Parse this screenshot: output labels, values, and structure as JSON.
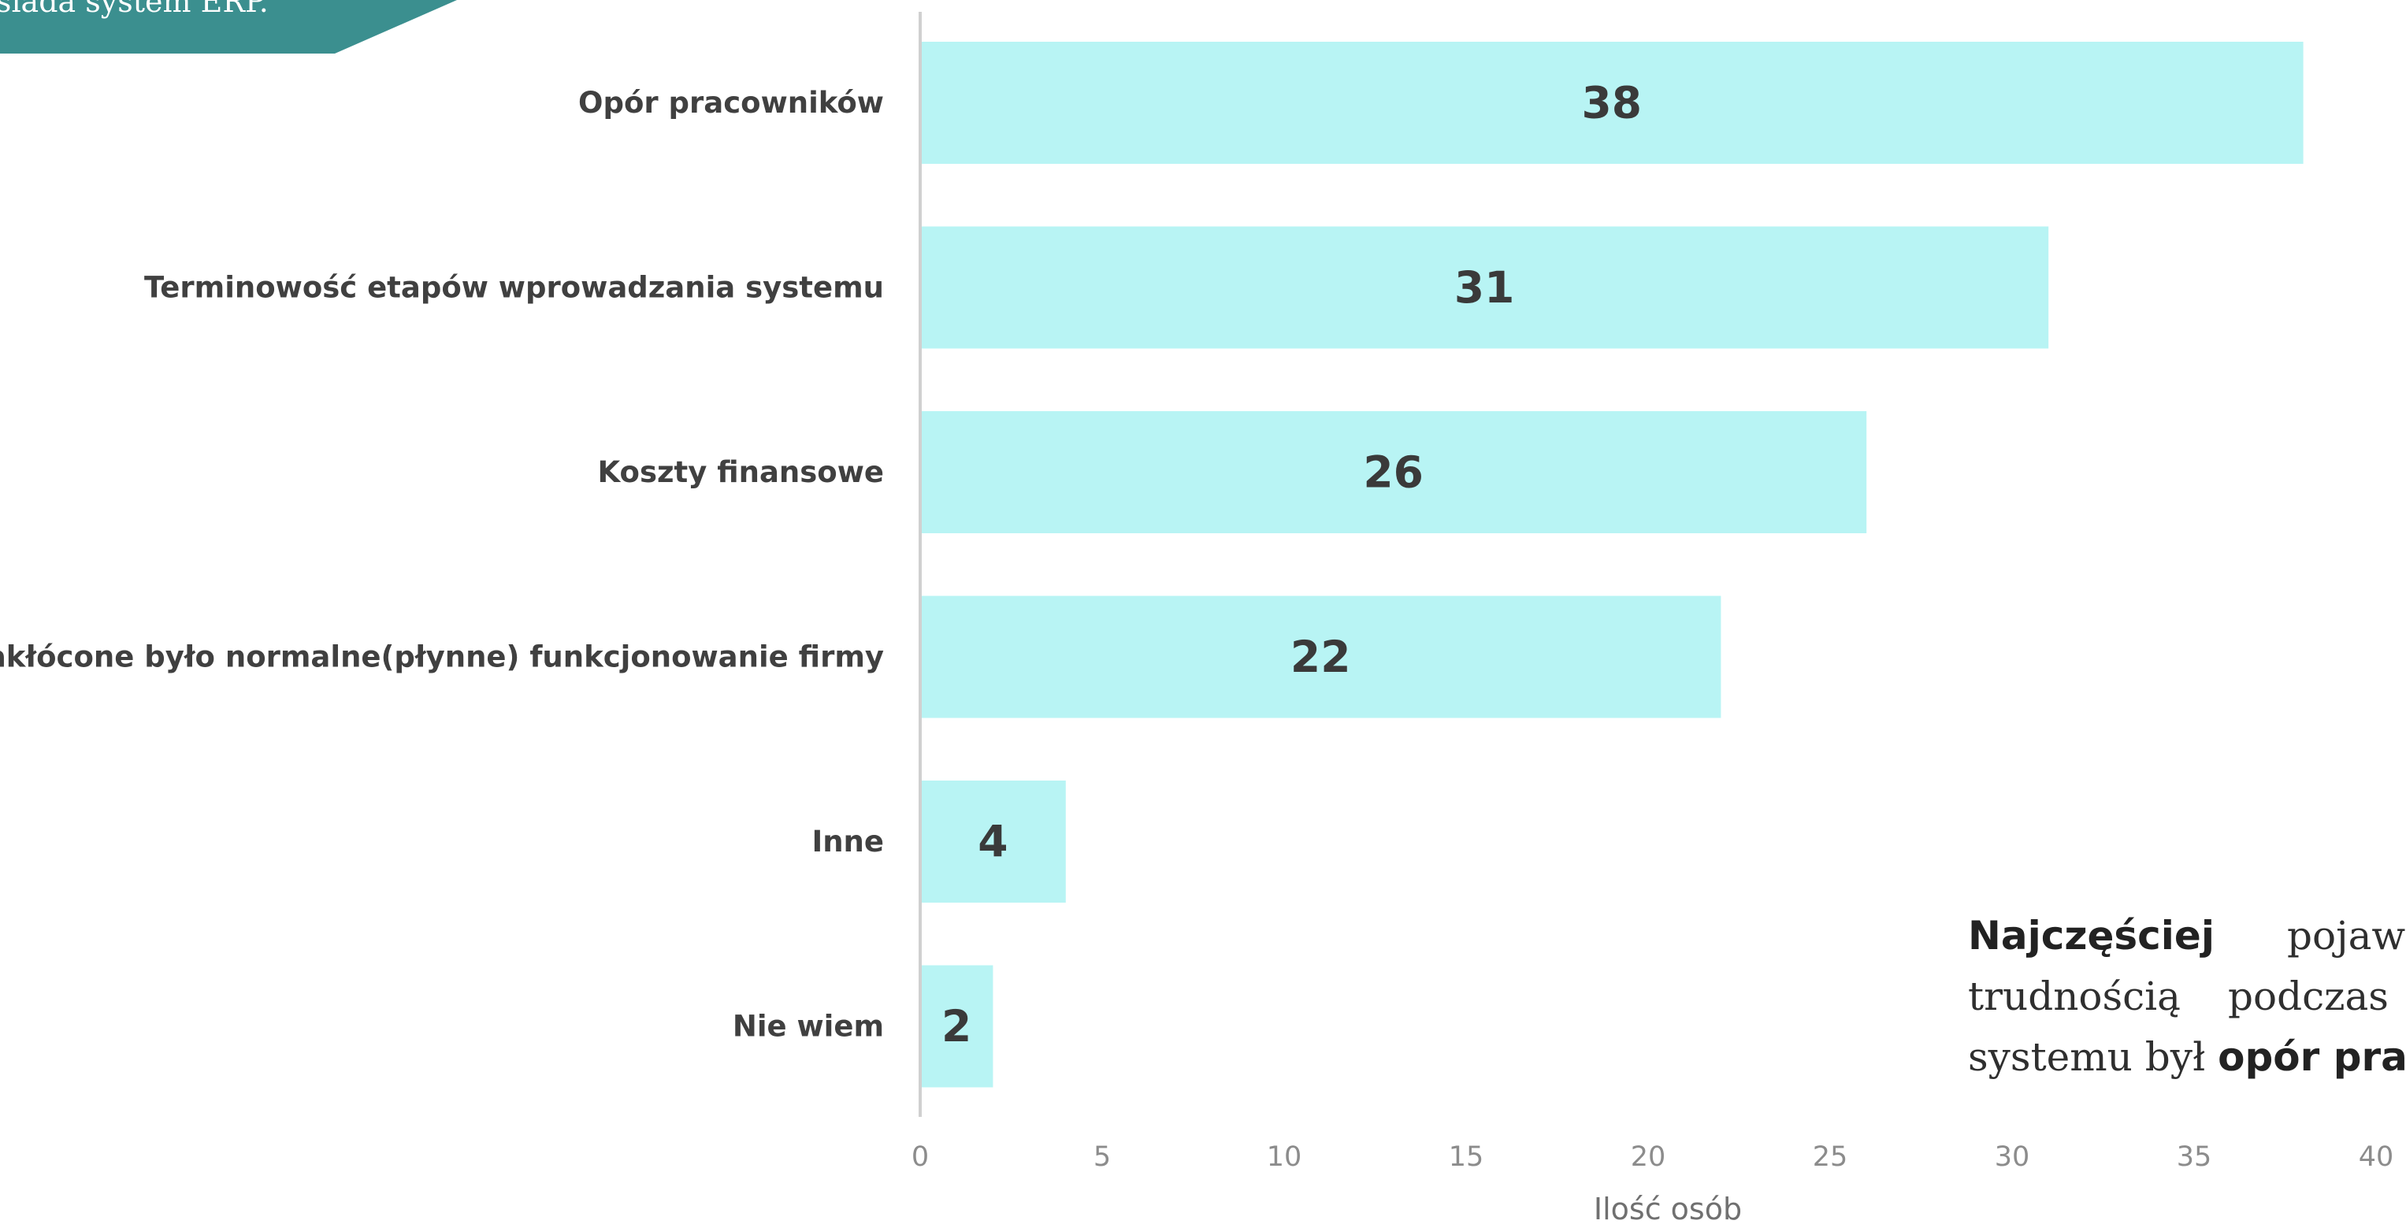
{
  "banner": {
    "text": "osiada system ERP.",
    "color": "#3b8f8f"
  },
  "summary": {
    "line1_bold": "Najczęściej",
    "line1_rest": "pojaw",
    "line2_a": "trudnością",
    "line2_b": "podczas",
    "line3_a": "systemu był",
    "line3_bold": "opór pra"
  },
  "chart_data": {
    "type": "bar",
    "orientation": "horizontal",
    "categories": [
      "Opór pracowników",
      "Terminowość etapów wprowadzania systemu",
      "Koszty finansowe",
      "Zakłócone było normalne(płynne) funkcjonowanie firmy",
      "Inne",
      "Nie wiem"
    ],
    "values": [
      38,
      31,
      26,
      22,
      4,
      2
    ],
    "data_labels": [
      "38",
      "31",
      "26",
      "22",
      "4",
      "2"
    ],
    "xlabel": "Ilość osób",
    "xlim": [
      0,
      40
    ],
    "xticks": [
      0,
      5,
      10,
      15,
      20,
      25,
      30,
      35,
      40
    ],
    "tick_labels": [
      "0",
      "5",
      "10",
      "15",
      "20",
      "25",
      "30",
      "35",
      "40"
    ],
    "grid": false,
    "bar_color": "#b8f4f4",
    "label_color": "#404040",
    "tick_color": "#8c8c8c",
    "axis_color": "#d0d0d0"
  }
}
